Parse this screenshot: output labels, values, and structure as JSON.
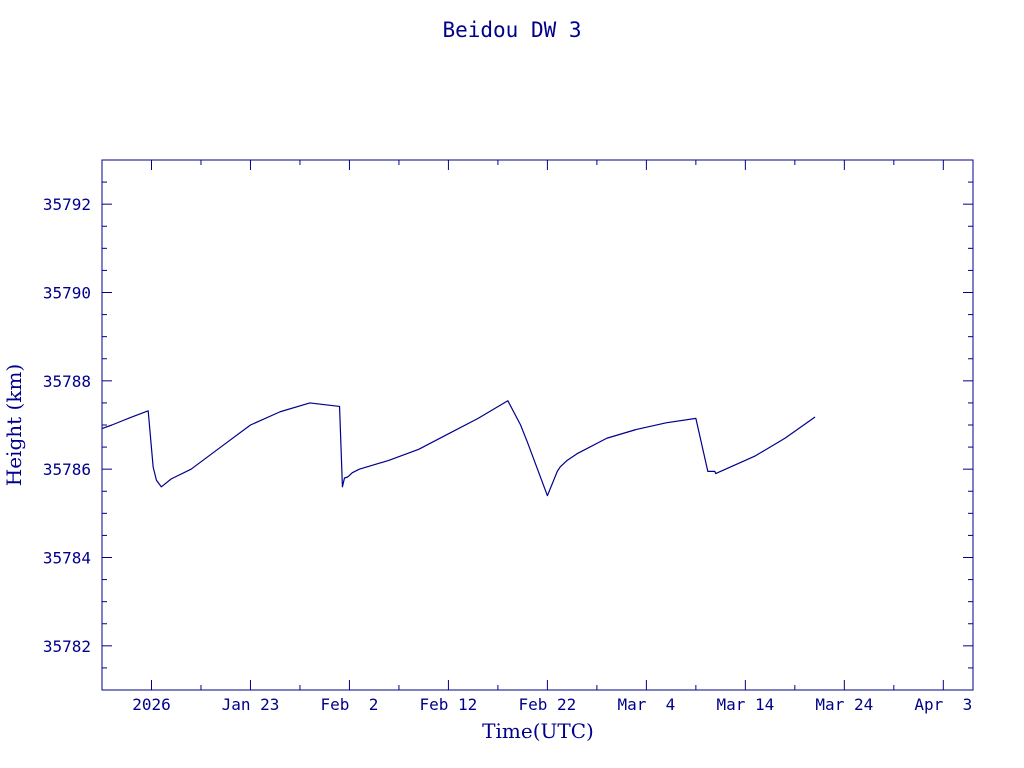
{
  "chart_data": {
    "type": "line",
    "title": "Beidou DW 3",
    "xlabel": "Time(UTC)",
    "ylabel": "Height (km)",
    "color": "#00008b",
    "grid": false,
    "xlim": [
      "2026-01-08",
      "2026-04-06"
    ],
    "ylim": [
      35781,
      35793
    ],
    "y_ticks": [
      35782,
      35784,
      35786,
      35788,
      35790,
      35792
    ],
    "y_tick_labels": [
      "35782",
      "35784",
      "35786",
      "35788",
      "35790",
      "35792"
    ],
    "x_ticks": [
      "2026-01-13",
      "2026-01-23",
      "2026-02-02",
      "2026-02-12",
      "2026-02-22",
      "2026-03-04",
      "2026-03-14",
      "2026-03-24",
      "2026-04-03"
    ],
    "x_tick_labels": [
      "2026",
      "Jan 23",
      "Feb  2",
      "Feb 12",
      "Feb 22",
      "Mar  4",
      "Mar 14",
      "Mar 24",
      "Apr  3"
    ],
    "series": [
      {
        "x": [
          "2026-01-08 00:00",
          "2026-01-09 00:00",
          "2026-01-11 00:00",
          "2026-01-12 16:00",
          "2026-01-13 04:00",
          "2026-01-13 12:00",
          "2026-01-14 00:00",
          "2026-01-15 00:00",
          "2026-01-17 00:00",
          "2026-01-20 00:00",
          "2026-01-23 00:00",
          "2026-01-26 00:00",
          "2026-01-29 00:00",
          "2026-02-01 00:00",
          "2026-02-01 07:00",
          "2026-02-01 12:00",
          "2026-02-01 19:00",
          "2026-02-01 23:00",
          "2026-02-02 07:00",
          "2026-02-03 00:00",
          "2026-02-06 00:00",
          "2026-02-09 00:00",
          "2026-02-12 00:00",
          "2026-02-15 00:00",
          "2026-02-18 00:00",
          "2026-02-19 07:00",
          "2026-02-20 00:00",
          "2026-02-22 00:00",
          "2026-02-23 00:00",
          "2026-02-23 07:00",
          "2026-02-24 00:00",
          "2026-02-25 00:00",
          "2026-02-28 00:00",
          "2026-03-03 00:00",
          "2026-03-06 00:00",
          "2026-03-09 00:00",
          "2026-03-10 05:00",
          "2026-03-10 22:00",
          "2026-03-11 00:00",
          "2026-03-12 00:00",
          "2026-03-15 00:00",
          "2026-03-18 00:00",
          "2026-03-21 01:00"
        ],
        "y": [
          35786.92,
          35787.0,
          35787.18,
          35787.32,
          35786.05,
          35785.75,
          35785.6,
          35785.78,
          35786.0,
          35786.5,
          35787.0,
          35787.3,
          35787.5,
          35787.42,
          35785.6,
          35785.8,
          35785.82,
          35785.85,
          35785.92,
          35786.0,
          35786.2,
          35786.45,
          35786.8,
          35787.15,
          35787.55,
          35787.0,
          35786.6,
          35785.4,
          35785.95,
          35786.05,
          35786.2,
          35786.35,
          35786.7,
          35786.9,
          35787.05,
          35787.15,
          35785.95,
          35785.95,
          35785.9,
          35786.0,
          35786.3,
          35786.7,
          35787.18
        ]
      }
    ]
  }
}
